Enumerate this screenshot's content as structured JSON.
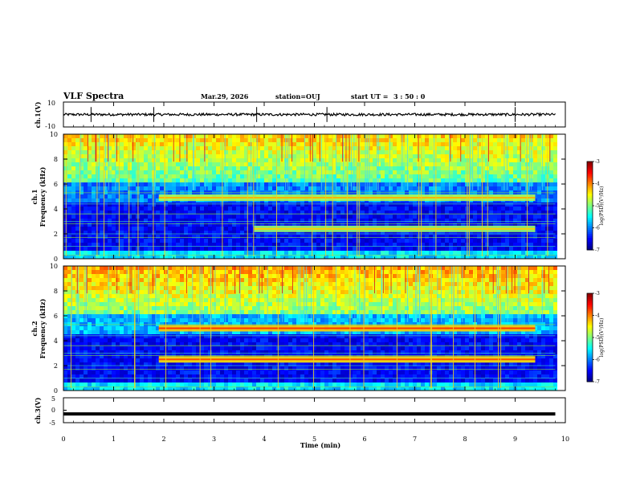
{
  "header": {
    "title": "VLF Spectra",
    "date": "Mar.29, 2026",
    "station": "station=OUJ",
    "start_label": "start  UT  =",
    "start_time": "3 : 50 : 0"
  },
  "chart_data": [
    {
      "type": "line",
      "name": "ch1-waveform",
      "ylabel": "ch.1(V)",
      "ylim": [
        -10,
        10
      ],
      "yticks": [
        "10",
        "-10"
      ],
      "xlim": [
        0,
        10
      ],
      "baseline": 0,
      "amplitude": 1,
      "spikes_min": [
        0.55,
        1.8,
        3.85,
        5.25,
        9.0
      ]
    },
    {
      "type": "heatmap",
      "name": "ch1-spectrogram",
      "ylabel": "ch.1\nFrequency (kHz)",
      "ylim": [
        0,
        10
      ],
      "yticks": [
        "0",
        "2",
        "4",
        "6",
        "8",
        "10"
      ],
      "xlim": [
        0,
        10
      ],
      "data_end_min": 9.8,
      "background_log_psd": -5.2,
      "bands": [
        {
          "t_start": 1.9,
          "t_end": 9.4,
          "f_khz": 4.9,
          "log_psd": -4.8
        },
        {
          "t_start": 3.8,
          "t_end": 9.4,
          "f_khz": 2.4,
          "log_psd": -4.9
        }
      ],
      "colorbar": {
        "label": "log(PSD)(V²/Hz)",
        "ticks": [
          "-3",
          "-4",
          "-5",
          "-6",
          "-7"
        ],
        "range": [
          -7,
          -3
        ]
      }
    },
    {
      "type": "heatmap",
      "name": "ch2-spectrogram",
      "ylabel": "ch.2\nFrequency (kHz)",
      "ylim": [
        0,
        10
      ],
      "yticks": [
        "0",
        "2",
        "4",
        "6",
        "8",
        "10"
      ],
      "xlim": [
        0,
        10
      ],
      "data_end_min": 9.8,
      "background_log_psd": -5.0,
      "bands": [
        {
          "t_start": 1.9,
          "t_end": 9.4,
          "f_khz": 5.0,
          "log_psd": -4.3
        },
        {
          "t_start": 1.9,
          "t_end": 9.4,
          "f_khz": 2.5,
          "log_psd": -4.4
        }
      ],
      "colorbar": {
        "label": "log(PSD)(V²/Hz)",
        "ticks": [
          "-3",
          "-4",
          "-5",
          "-6",
          "-7"
        ],
        "range": [
          -7,
          -3
        ]
      }
    },
    {
      "type": "line",
      "name": "ch3-waveform",
      "ylabel": "ch.3(V)",
      "ylim": [
        -5,
        5
      ],
      "yticks": [
        "5",
        "0",
        "-5"
      ],
      "xlim": [
        0,
        9.8
      ],
      "constant_value": -1.5
    }
  ],
  "xaxis": {
    "label": "Time (min)",
    "ticks": [
      "0",
      "1",
      "2",
      "3",
      "4",
      "5",
      "6",
      "7",
      "8",
      "9",
      "10"
    ],
    "range": [
      0,
      10
    ]
  }
}
